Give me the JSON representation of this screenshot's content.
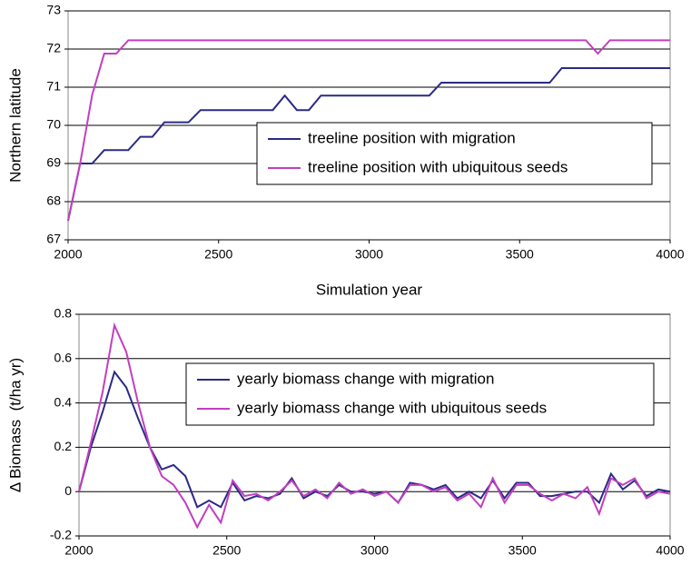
{
  "chart_data": [
    {
      "type": "line",
      "xlabel": "Simulation year",
      "ylabel": "Northern latitude",
      "x": [
        2000,
        2040,
        2080,
        2120,
        2160,
        2200,
        2240,
        2280,
        2320,
        2360,
        2400,
        2440,
        2480,
        2520,
        2560,
        2600,
        2640,
        2680,
        2720,
        2760,
        2800,
        2840,
        2880,
        2920,
        2960,
        3000,
        3040,
        3080,
        3120,
        3160,
        3200,
        3240,
        3280,
        3320,
        3360,
        3400,
        3440,
        3480,
        3520,
        3560,
        3600,
        3640,
        3680,
        3720,
        3760,
        3800,
        3840,
        3880,
        3920,
        3960,
        4000
      ],
      "series": [
        {
          "name": "treeline position with migration",
          "color": "#2b2a86",
          "values": [
            67.5,
            69.0,
            69.0,
            69.35,
            69.35,
            69.35,
            69.7,
            69.7,
            70.08,
            70.08,
            70.08,
            70.4,
            70.4,
            70.4,
            70.4,
            70.4,
            70.4,
            70.4,
            70.78,
            70.4,
            70.4,
            70.78,
            70.78,
            70.78,
            70.78,
            70.78,
            70.78,
            70.78,
            70.78,
            70.78,
            70.78,
            71.12,
            71.12,
            71.12,
            71.12,
            71.12,
            71.12,
            71.12,
            71.12,
            71.12,
            71.12,
            71.5,
            71.5,
            71.5,
            71.5,
            71.5,
            71.5,
            71.5,
            71.5,
            71.5,
            71.5
          ]
        },
        {
          "name": "treeline position with ubiquitous seeds",
          "color": "#c23fbf",
          "values": [
            67.5,
            69.0,
            70.8,
            71.88,
            71.88,
            72.23,
            72.23,
            72.23,
            72.23,
            72.23,
            72.23,
            72.23,
            72.23,
            72.23,
            72.23,
            72.23,
            72.23,
            72.23,
            72.23,
            72.23,
            72.23,
            72.23,
            72.23,
            72.23,
            72.23,
            72.23,
            72.23,
            72.23,
            72.23,
            72.23,
            72.23,
            72.23,
            72.23,
            72.23,
            72.23,
            72.23,
            72.23,
            72.23,
            72.23,
            72.23,
            72.23,
            72.23,
            72.23,
            72.23,
            71.88,
            72.23,
            72.23,
            72.23,
            72.23,
            72.23,
            72.23
          ]
        }
      ],
      "xlim": [
        2000,
        4000
      ],
      "xticks": [
        2000,
        2500,
        3000,
        3500,
        4000
      ],
      "ylim": [
        67,
        73
      ],
      "yticks": [
        67,
        68,
        69,
        70,
        71,
        72,
        73
      ],
      "grid": true
    },
    {
      "type": "line",
      "ylabel": "Δ Biomass  (t/ha yr)",
      "x": [
        2000,
        2040,
        2080,
        2120,
        2160,
        2200,
        2240,
        2280,
        2320,
        2360,
        2400,
        2440,
        2480,
        2520,
        2560,
        2600,
        2640,
        2680,
        2720,
        2760,
        2800,
        2840,
        2880,
        2920,
        2960,
        3000,
        3040,
        3080,
        3120,
        3160,
        3200,
        3240,
        3280,
        3320,
        3360,
        3400,
        3440,
        3480,
        3520,
        3560,
        3600,
        3640,
        3680,
        3720,
        3760,
        3800,
        3840,
        3880,
        3920,
        3960,
        4000
      ],
      "series": [
        {
          "name": "yearly biomass change with migration",
          "color": "#2b2a86",
          "values": [
            0,
            0.2,
            0.36,
            0.54,
            0.47,
            0.33,
            0.2,
            0.1,
            0.12,
            0.07,
            -0.07,
            -0.04,
            -0.07,
            0.04,
            -0.04,
            -0.02,
            -0.03,
            -0.01,
            0.06,
            -0.03,
            0,
            -0.02,
            0.03,
            0,
            0,
            -0.01,
            0,
            -0.05,
            0.04,
            0.03,
            0.01,
            0.03,
            -0.03,
            0,
            -0.03,
            0.05,
            -0.03,
            0.04,
            0.04,
            -0.02,
            -0.02,
            -0.01,
            0,
            0,
            -0.05,
            0.08,
            0.01,
            0.05,
            -0.02,
            0.01,
            0
          ]
        },
        {
          "name": "yearly biomass change with ubiquitous seeds",
          "color": "#c23fbf",
          "values": [
            0,
            0.22,
            0.45,
            0.75,
            0.63,
            0.4,
            0.2,
            0.07,
            0.03,
            -0.05,
            -0.16,
            -0.06,
            -0.14,
            0.05,
            -0.02,
            -0.01,
            -0.04,
            0,
            0.05,
            -0.02,
            0.01,
            -0.03,
            0.04,
            -0.01,
            0.01,
            -0.02,
            0,
            -0.05,
            0.03,
            0.03,
            0,
            0.02,
            -0.04,
            -0.01,
            -0.07,
            0.06,
            -0.05,
            0.03,
            0.03,
            -0.01,
            -0.04,
            -0.01,
            -0.03,
            0.02,
            -0.1,
            0.06,
            0.03,
            0.06,
            -0.03,
            0,
            -0.01
          ]
        }
      ],
      "xlim": [
        2000,
        4000
      ],
      "xticks": [
        2000,
        2500,
        3000,
        3500,
        4000
      ],
      "ylim": [
        -0.2,
        0.8
      ],
      "yticks": [
        -0.2,
        0,
        0.2,
        0.4,
        0.6,
        0.8
      ],
      "grid": true
    }
  ]
}
